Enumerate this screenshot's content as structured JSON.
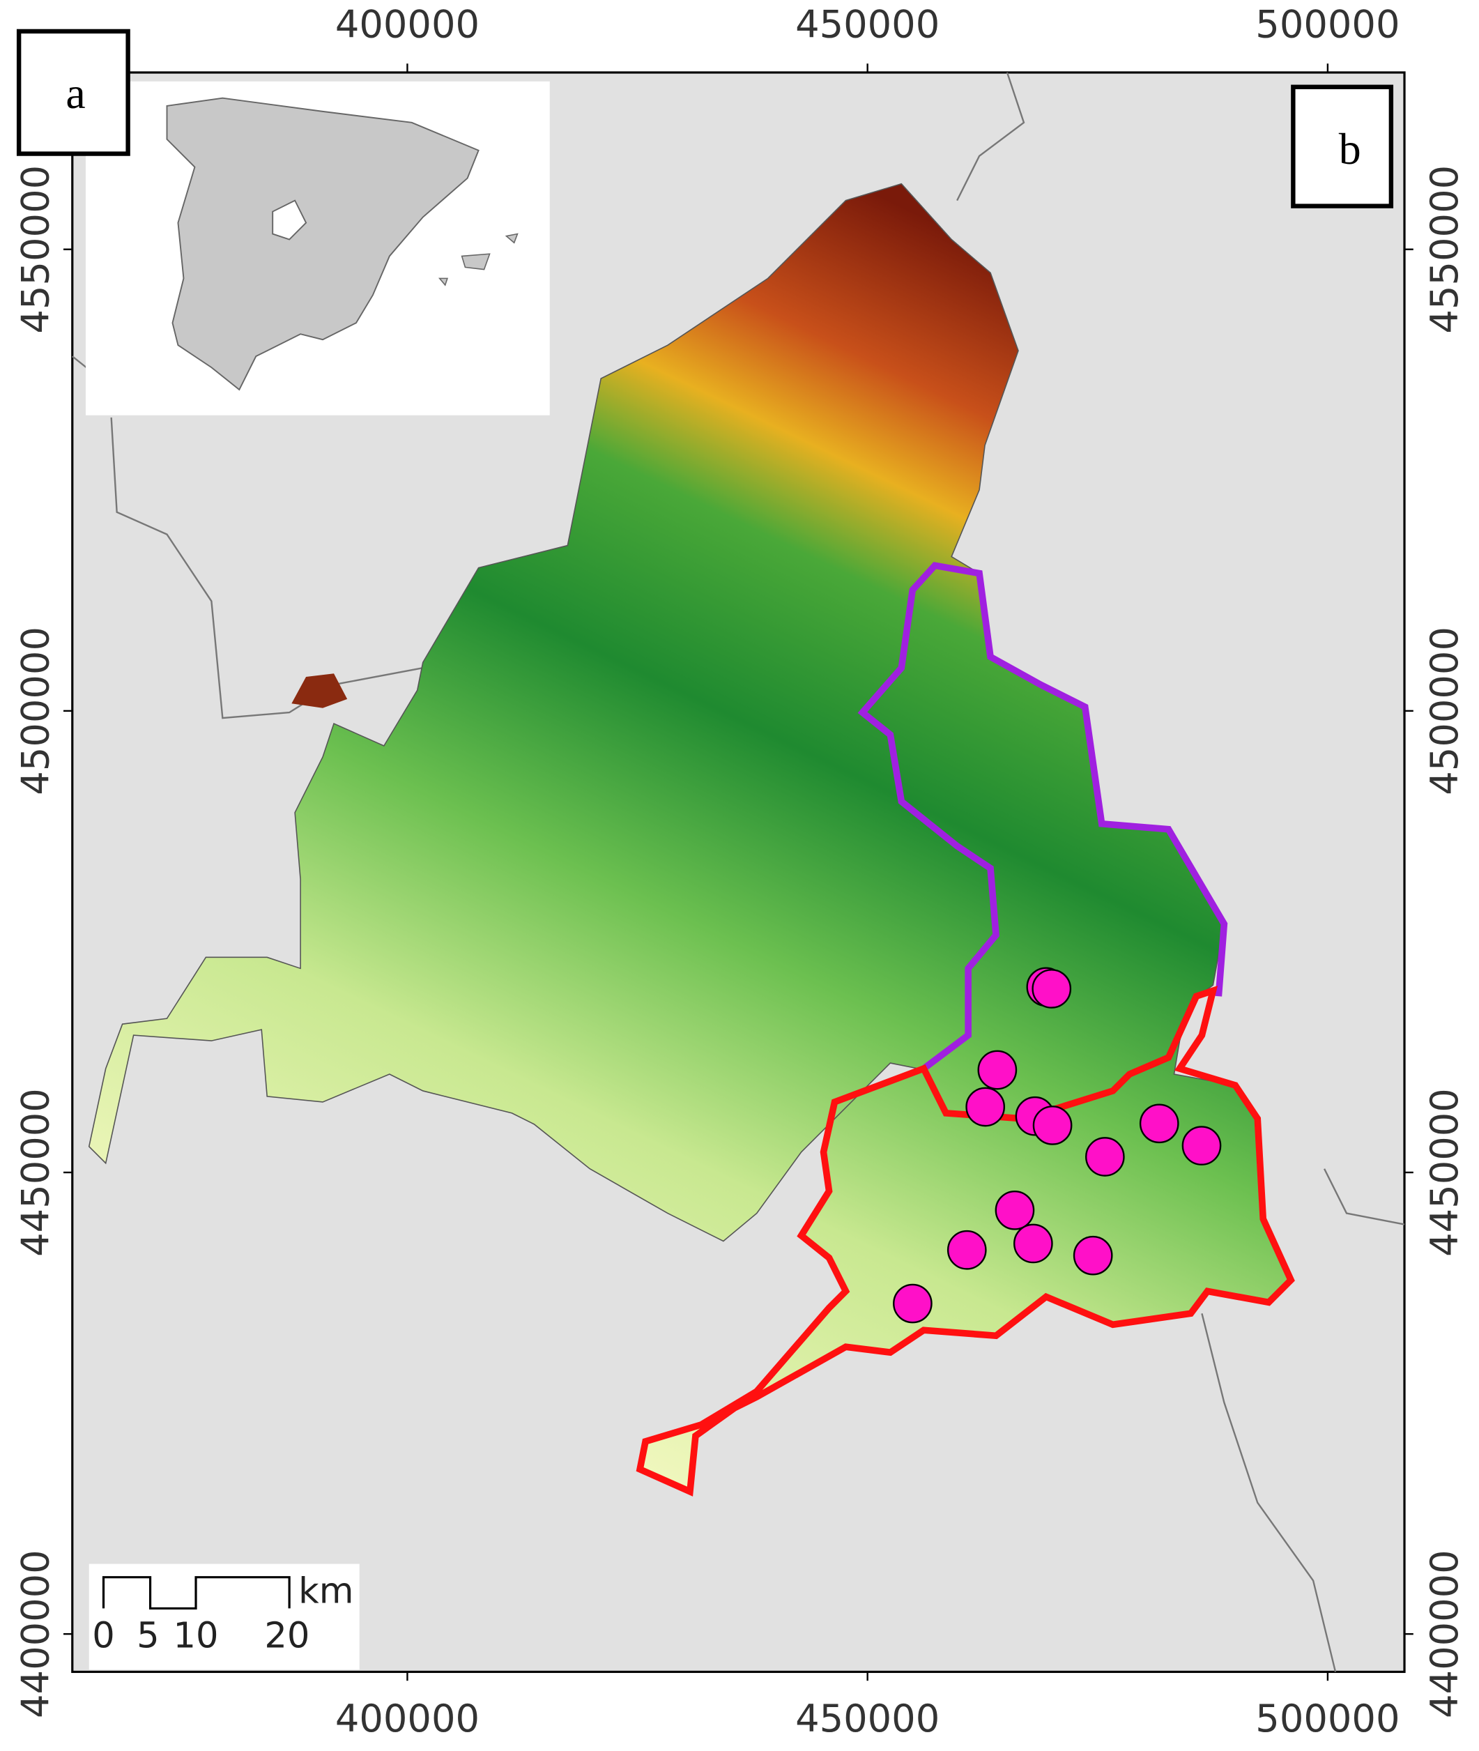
{
  "chart_data": {
    "type": "map",
    "xlim": [
      363600,
      508340
    ],
    "ylim": [
      4395900,
      4569160
    ],
    "xticks": [
      400000,
      450000,
      500000
    ],
    "yticks": [
      4400000,
      4450000,
      4500000,
      4550000
    ],
    "panel_labels": [
      "a",
      "b"
    ],
    "scale_bar": {
      "labels": [
        "0",
        "5",
        "10",
        "20"
      ],
      "unit": "km"
    },
    "series": [
      {
        "color": "#ff10c8",
        "x": [
          469400,
          470000,
          464100,
          462800,
          468200,
          470100,
          475800,
          481700,
          486300,
          466000,
          468000,
          460800,
          474500,
          454900
        ],
        "y": [
          4470100,
          4469900,
          4461100,
          4457100,
          4456100,
          4455100,
          4451700,
          4455300,
          4452900,
          4445900,
          4442300,
          4441600,
          4441000,
          4435800
        ]
      }
    ]
  }
}
